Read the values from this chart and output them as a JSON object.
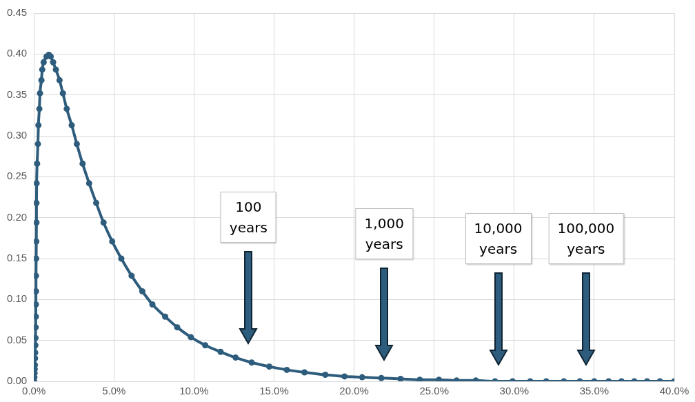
{
  "chart_data": {
    "type": "line",
    "marker": "circle",
    "grid": true,
    "legend": false,
    "xlim": [
      0,
      40
    ],
    "xticks": [
      {
        "value": 0,
        "label": "0.0%"
      },
      {
        "value": 5,
        "label": "5.0%"
      },
      {
        "value": 10,
        "label": "10.0%"
      },
      {
        "value": 15,
        "label": "15.0%"
      },
      {
        "value": 20,
        "label": "20.0%"
      },
      {
        "value": 25,
        "label": "25.0%"
      },
      {
        "value": 30,
        "label": "30.0%"
      },
      {
        "value": 35,
        "label": "35.0%"
      },
      {
        "value": 40,
        "label": "40.0%"
      }
    ],
    "ylim": [
      0,
      0.45
    ],
    "yticks": [
      {
        "value": 0,
        "label": "0.00"
      },
      {
        "value": 0.05,
        "label": "0.05"
      },
      {
        "value": 0.1,
        "label": "0.10"
      },
      {
        "value": 0.15,
        "label": "0.15"
      },
      {
        "value": 0.2,
        "label": "0.20"
      },
      {
        "value": 0.25,
        "label": "0.25"
      },
      {
        "value": 0.3,
        "label": "0.30"
      },
      {
        "value": 0.35,
        "label": "0.35"
      },
      {
        "value": 0.4,
        "label": "0.40"
      },
      {
        "value": 0.45,
        "label": "0.45"
      }
    ],
    "series": [
      {
        "color": "#2e5c7c",
        "x": [
          0.02,
          0.03,
          0.04,
          0.05,
          0.06,
          0.07,
          0.08,
          0.09,
          0.1,
          0.11,
          0.12,
          0.12,
          0.13,
          0.13,
          0.14,
          0.15,
          0.16,
          0.16,
          0.17,
          0.2,
          0.25,
          0.28,
          0.34,
          0.38,
          0.47,
          0.52,
          0.61,
          0.79,
          0.93,
          1.05,
          1.2,
          1.37,
          1.6,
          1.81,
          2.05,
          2.36,
          2.68,
          3.04,
          3.45,
          3.89,
          4.35,
          4.89,
          5.46,
          6.1,
          6.77,
          7.4,
          8.2,
          8.95,
          9.8,
          10.7,
          11.66,
          12.6,
          13.6,
          14.7,
          15.8,
          16.9,
          18.2,
          19.4,
          20.5,
          21.7,
          22.9,
          24.1,
          25.3,
          26.4,
          27.6,
          28.8,
          29.9,
          31.0,
          32.0,
          33.1,
          34.1,
          35.0,
          35.9,
          36.7,
          37.5,
          38.3,
          39.1,
          40.0
        ],
        "values": [
          0.0,
          0.005,
          0.01,
          0.015,
          0.02,
          0.028,
          0.035,
          0.044,
          0.053,
          0.066,
          0.079,
          0.094,
          0.11,
          0.129,
          0.15,
          0.171,
          0.194,
          0.218,
          0.242,
          0.266,
          0.29,
          0.313,
          0.333,
          0.352,
          0.368,
          0.381,
          0.39,
          0.397,
          0.399,
          0.397,
          0.39,
          0.381,
          0.368,
          0.352,
          0.333,
          0.313,
          0.29,
          0.266,
          0.242,
          0.218,
          0.194,
          0.171,
          0.15,
          0.129,
          0.11,
          0.094,
          0.079,
          0.066,
          0.054,
          0.044,
          0.036,
          0.029,
          0.023,
          0.018,
          0.014,
          0.011,
          0.008,
          0.006,
          0.005,
          0.004,
          0.003,
          0.002,
          0.002,
          0.001,
          0.001,
          0.0,
          0.0,
          0.0,
          0.0,
          0.0,
          0.0,
          0.0,
          0.0,
          0.0,
          0.0,
          0.0,
          0.0,
          0.0
        ]
      }
    ],
    "annotations": [
      "100 years",
      "1,000 years",
      "10,000 years",
      "100,000 years"
    ]
  }
}
